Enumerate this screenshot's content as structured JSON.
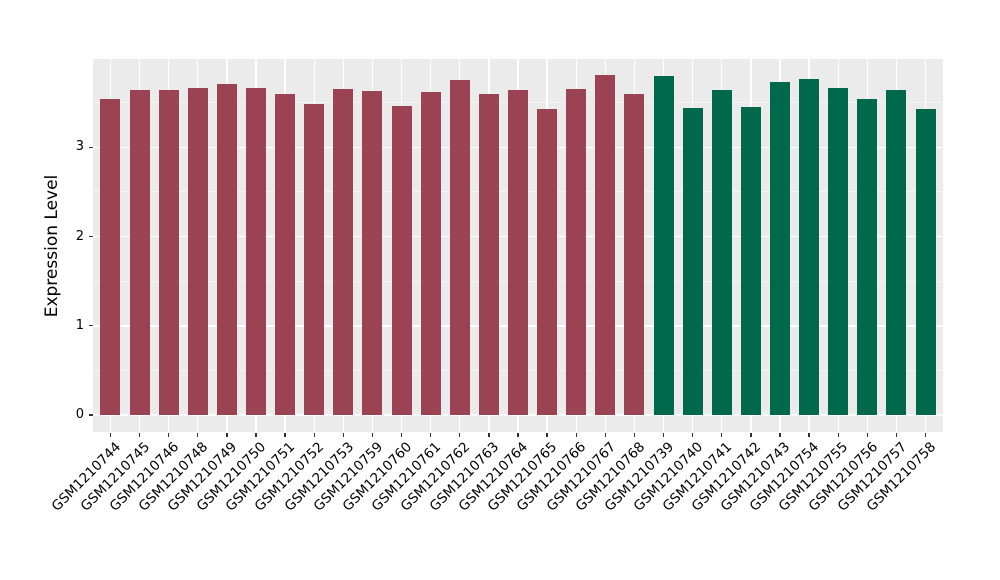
{
  "figure": {
    "background": "#FFFFFF"
  },
  "chart_data": {
    "type": "bar",
    "title": "",
    "xlabel": "",
    "ylabel": "Expression Level",
    "ylim": [
      -0.19,
      3.99
    ],
    "yticks": [
      0,
      1,
      2,
      3
    ],
    "yticks_minor": [
      0.5,
      1.5,
      2.5,
      3.5
    ],
    "grid": "on",
    "legend": "none",
    "panel_background": "#EBEBEB",
    "grid_color": "#FFFFFF",
    "tick_color": "#333333",
    "text_color": "#000000",
    "group_colors": {
      "maroon": "#9B4253",
      "green": "#00694B"
    },
    "categories": [
      "GSM1210744",
      "GSM1210745",
      "GSM1210746",
      "GSM1210748",
      "GSM1210749",
      "GSM1210750",
      "GSM1210751",
      "GSM1210752",
      "GSM1210753",
      "GSM1210759",
      "GSM1210760",
      "GSM1210761",
      "GSM1210762",
      "GSM1210763",
      "GSM1210764",
      "GSM1210765",
      "GSM1210766",
      "GSM1210767",
      "GSM1210768",
      "GSM1210739",
      "GSM1210740",
      "GSM1210741",
      "GSM1210742",
      "GSM1210743",
      "GSM1210754",
      "GSM1210755",
      "GSM1210756",
      "GSM1210757",
      "GSM1210758"
    ],
    "values": [
      3.54,
      3.64,
      3.64,
      3.67,
      3.71,
      3.67,
      3.6,
      3.49,
      3.65,
      3.63,
      3.46,
      3.62,
      3.76,
      3.6,
      3.64,
      3.43,
      3.65,
      3.81,
      3.6,
      3.8,
      3.44,
      3.64,
      3.45,
      3.73,
      3.77,
      3.67,
      3.54,
      3.64,
      3.43
    ],
    "bar_groups": [
      "maroon",
      "maroon",
      "maroon",
      "maroon",
      "maroon",
      "maroon",
      "maroon",
      "maroon",
      "maroon",
      "maroon",
      "maroon",
      "maroon",
      "maroon",
      "maroon",
      "maroon",
      "maroon",
      "maroon",
      "maroon",
      "maroon",
      "green",
      "green",
      "green",
      "green",
      "green",
      "green",
      "green",
      "green",
      "green",
      "green"
    ]
  }
}
